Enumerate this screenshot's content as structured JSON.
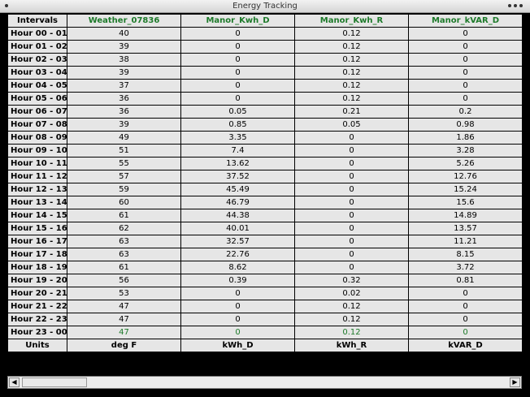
{
  "window": {
    "title": "Energy Tracking"
  },
  "table": {
    "corner": "Intervals",
    "columns": [
      "Weather_07836",
      "Manor_Kwh_D",
      "Manor_Kwh_R",
      "Manor_kVAR_D"
    ],
    "rows": [
      {
        "label": "Hour 00 - 01",
        "values": [
          "40",
          "0",
          "0.12",
          "0"
        ]
      },
      {
        "label": "Hour 01 - 02",
        "values": [
          "39",
          "0",
          "0.12",
          "0"
        ]
      },
      {
        "label": "Hour 02 - 03",
        "values": [
          "38",
          "0",
          "0.12",
          "0"
        ]
      },
      {
        "label": "Hour 03 - 04",
        "values": [
          "39",
          "0",
          "0.12",
          "0"
        ]
      },
      {
        "label": "Hour 04 - 05",
        "values": [
          "37",
          "0",
          "0.12",
          "0"
        ]
      },
      {
        "label": "Hour 05 - 06",
        "values": [
          "36",
          "0",
          "0.12",
          "0"
        ]
      },
      {
        "label": "Hour 06 - 07",
        "values": [
          "36",
          "0.05",
          "0.21",
          "0.2"
        ]
      },
      {
        "label": "Hour 07 - 08",
        "values": [
          "39",
          "0.85",
          "0.05",
          "0.98"
        ]
      },
      {
        "label": "Hour 08 - 09",
        "values": [
          "49",
          "3.35",
          "0",
          "1.86"
        ]
      },
      {
        "label": "Hour 09 - 10",
        "values": [
          "51",
          "7.4",
          "0",
          "3.28"
        ]
      },
      {
        "label": "Hour 10 - 11",
        "values": [
          "55",
          "13.62",
          "0",
          "5.26"
        ]
      },
      {
        "label": "Hour 11 - 12",
        "values": [
          "57",
          "37.52",
          "0",
          "12.76"
        ]
      },
      {
        "label": "Hour 12 - 13",
        "values": [
          "59",
          "45.49",
          "0",
          "15.24"
        ]
      },
      {
        "label": "Hour 13 - 14",
        "values": [
          "60",
          "46.79",
          "0",
          "15.6"
        ]
      },
      {
        "label": "Hour 14 - 15",
        "values": [
          "61",
          "44.38",
          "0",
          "14.89"
        ]
      },
      {
        "label": "Hour 15 - 16",
        "values": [
          "62",
          "40.01",
          "0",
          "13.57"
        ]
      },
      {
        "label": "Hour 16 - 17",
        "values": [
          "63",
          "32.57",
          "0",
          "11.21"
        ]
      },
      {
        "label": "Hour 17 - 18",
        "values": [
          "63",
          "22.76",
          "0",
          "8.15"
        ]
      },
      {
        "label": "Hour 18 - 19",
        "values": [
          "61",
          "8.62",
          "0",
          "3.72"
        ]
      },
      {
        "label": "Hour 19 - 20",
        "values": [
          "56",
          "0.39",
          "0.32",
          "0.81"
        ]
      },
      {
        "label": "Hour 20 - 21",
        "values": [
          "53",
          "0",
          "0.02",
          "0"
        ]
      },
      {
        "label": "Hour 21 - 22",
        "values": [
          "47",
          "0",
          "0.12",
          "0"
        ]
      },
      {
        "label": "Hour 22 - 23",
        "values": [
          "47",
          "0",
          "0.12",
          "0"
        ]
      },
      {
        "label": "Hour 23 - 00",
        "values": [
          "47",
          "0",
          "0.12",
          "0"
        ]
      }
    ],
    "units_label": "Units",
    "units": [
      "deg F",
      "kWh_D",
      "kWh_R",
      "kVAR_D"
    ]
  },
  "scrollbar": {
    "left_arrow": "◀",
    "right_arrow": "▶"
  },
  "colors": {
    "header_text": "#1d7a2a",
    "cell_bg": "#e6e6e6",
    "grid_lines": "#000000"
  }
}
